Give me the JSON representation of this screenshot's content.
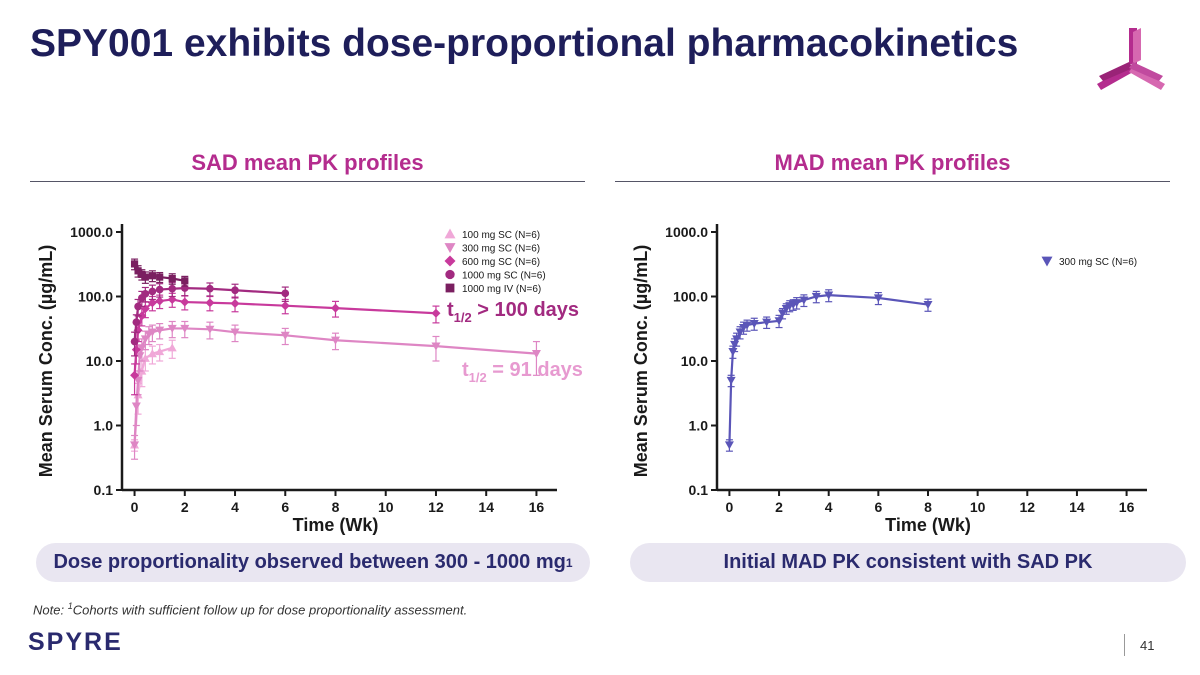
{
  "slide": {
    "title": "SPY001 exhibits dose-proportional pharmacokinetics",
    "brand": "SPYRE",
    "page_number": "41",
    "note_prefix": "Note: ",
    "note_sup": "1",
    "note_text": "Cohorts with sufficient follow up for dose proportionality assessment.",
    "left_heading": "SAD mean PK profiles",
    "right_heading": "MAD mean PK profiles",
    "left_callout": "Dose proportionality observed between 300 - 1000 mg",
    "left_callout_sup": "1",
    "right_callout": "Initial MAD PK consistent with SAD PK",
    "colors": {
      "title": "#1e1e5a",
      "accent": "#b42c8e",
      "pill_bg": "#e9e6f1",
      "pill_text": "#2a2a6e"
    }
  },
  "chart_data": [
    {
      "id": "sad",
      "type": "line",
      "title": "SAD mean PK profiles",
      "xlabel": "Time (Wk)",
      "ylabel": "Mean Serum Conc. (µg/mL)",
      "xlim": [
        -0.5,
        16.5
      ],
      "xticks": [
        0,
        2,
        4,
        6,
        8,
        10,
        12,
        14,
        16
      ],
      "yscale": "log",
      "ylim": [
        0.1,
        1000
      ],
      "yticks": [
        0.1,
        1,
        10,
        100,
        1000
      ],
      "ytick_labels": [
        "0.1",
        "1.0",
        "10.0",
        "100.0",
        "1000.0"
      ],
      "legend_position": "top-right",
      "series": [
        {
          "name": "100 mg SC (N=6)",
          "marker": "triangle-up",
          "color": "#f0a8d8",
          "x": [
            0,
            0.14,
            0.29,
            0.43,
            0.71,
            1,
            1.5
          ],
          "y": [
            0.5,
            3,
            7,
            11,
            13,
            14,
            16
          ],
          "err": [
            0.1,
            1.5,
            3,
            4,
            4,
            4,
            5
          ]
        },
        {
          "name": "300 mg SC (N=6)",
          "marker": "triangle-down",
          "color": "#de86c4",
          "x": [
            0,
            0.07,
            0.14,
            0.21,
            0.29,
            0.43,
            0.57,
            0.71,
            1,
            1.5,
            2,
            3,
            4,
            6,
            8,
            12,
            16
          ],
          "y": [
            0.5,
            2,
            5,
            12,
            16,
            22,
            26,
            28,
            30,
            32,
            32,
            31,
            28,
            25,
            21,
            17,
            13
          ],
          "err": [
            0.2,
            1,
            2,
            5,
            6,
            7,
            8,
            8,
            8,
            9,
            9,
            9,
            8,
            7,
            6,
            7,
            7
          ]
        },
        {
          "name": "600 mg SC (N=6)",
          "marker": "diamond",
          "color": "#c83a9c",
          "x": [
            0,
            0.07,
            0.14,
            0.29,
            0.43,
            0.71,
            1,
            1.5,
            2,
            3,
            4,
            6,
            8,
            12
          ],
          "y": [
            6,
            15,
            30,
            50,
            65,
            80,
            85,
            90,
            82,
            80,
            78,
            72,
            66,
            55
          ],
          "err": [
            3,
            6,
            10,
            15,
            18,
            20,
            20,
            22,
            20,
            20,
            20,
            18,
            18,
            16
          ]
        },
        {
          "name": "1000 mg SC (N=6)",
          "marker": "circle",
          "color": "#a22a80",
          "x": [
            0,
            0.07,
            0.14,
            0.29,
            0.43,
            0.71,
            1,
            1.5,
            2,
            3,
            4,
            6
          ],
          "y": [
            20,
            40,
            70,
            95,
            110,
            120,
            128,
            132,
            135,
            132,
            125,
            112
          ],
          "err": [
            8,
            12,
            20,
            25,
            28,
            30,
            30,
            32,
            32,
            30,
            30,
            28
          ]
        },
        {
          "name": "1000 mg IV (N=6)",
          "marker": "square",
          "color": "#7a1f60",
          "x": [
            0,
            0.14,
            0.29,
            0.43,
            0.71,
            1,
            1.5,
            2
          ],
          "y": [
            320,
            250,
            220,
            200,
            210,
            200,
            190,
            175
          ],
          "err": [
            60,
            50,
            40,
            40,
            40,
            35,
            35,
            30
          ]
        }
      ],
      "annotations": [
        {
          "pre": "t",
          "sub": "1/2",
          "post": " > 100 days",
          "color": "#a22a80"
        },
        {
          "pre": "t",
          "sub": "1/2",
          "post": " = 91 days",
          "color": "#e79ad0"
        }
      ]
    },
    {
      "id": "mad",
      "type": "line",
      "title": "MAD mean PK profiles",
      "xlabel": "Time (Wk)",
      "ylabel": "Mean Serum Conc. (µg/mL)",
      "xlim": [
        -0.5,
        16.5
      ],
      "xticks": [
        0,
        2,
        4,
        6,
        8,
        10,
        12,
        14,
        16
      ],
      "yscale": "log",
      "ylim": [
        0.1,
        1000
      ],
      "yticks": [
        0.1,
        1,
        10,
        100,
        1000
      ],
      "ytick_labels": [
        "0.1",
        "1.0",
        "10.0",
        "100.0",
        "1000.0"
      ],
      "legend_position": "top-right",
      "series": [
        {
          "name": "300 mg SC (N=6)",
          "marker": "triangle-down",
          "color": "#5a55b8",
          "x": [
            0,
            0.07,
            0.14,
            0.21,
            0.29,
            0.43,
            0.57,
            0.71,
            1,
            1.5,
            2,
            2.14,
            2.29,
            2.43,
            2.57,
            2.71,
            3,
            3.5,
            4,
            6,
            8
          ],
          "y": [
            0.5,
            5,
            14,
            18,
            22,
            28,
            33,
            36,
            38,
            40,
            42,
            55,
            65,
            72,
            75,
            80,
            88,
            100,
            105,
            95,
            75
          ],
          "err": [
            0.1,
            1,
            3,
            4,
            5,
            6,
            7,
            7,
            8,
            8,
            9,
            10,
            12,
            14,
            14,
            16,
            18,
            20,
            22,
            20,
            16
          ]
        }
      ]
    }
  ]
}
